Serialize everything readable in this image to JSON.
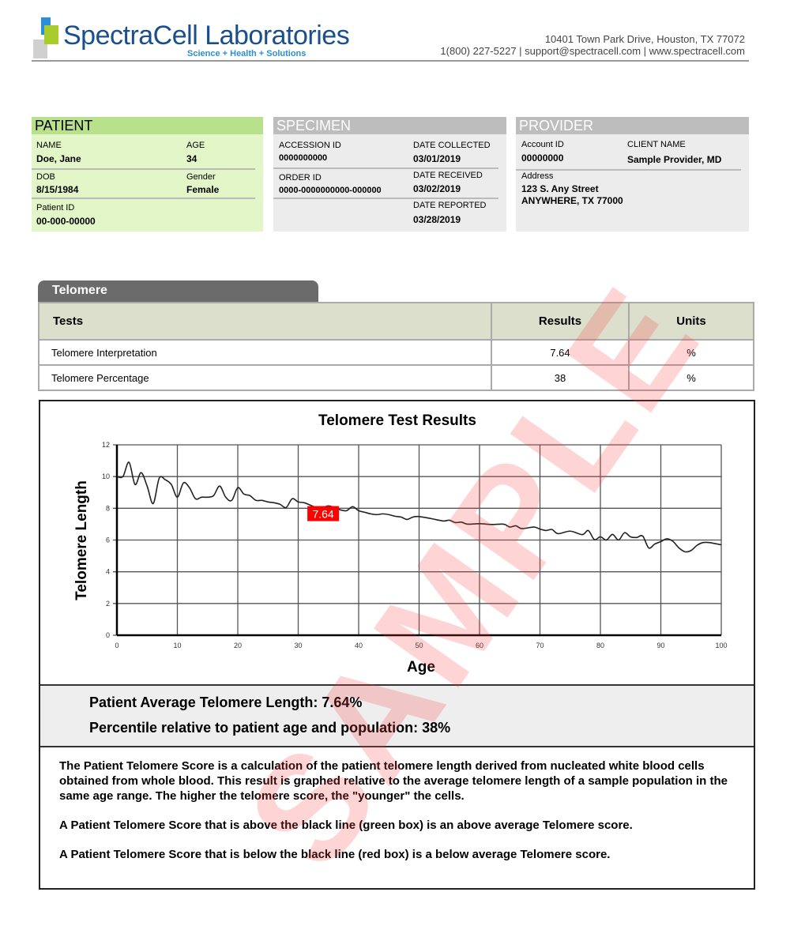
{
  "header": {
    "logo_text": "SpectraCell Laboratories",
    "tagline": "Science + Health + Solutions",
    "address_line1": "10401 Town Park Drive, Houston, TX 77072",
    "address_line2": "1(800) 227-5227 | support@spectracell.com | www.spectracell.com",
    "brand_color": "#1b4f8c"
  },
  "patient": {
    "title": "PATIENT",
    "name_label": "NAME",
    "name": "Doe, Jane",
    "age_label": "AGE",
    "age": "34",
    "dob_label": "DOB",
    "dob": "8/15/1984",
    "gender_label": "Gender",
    "gender": "Female",
    "pid_label": "Patient ID",
    "pid": "00-000-00000"
  },
  "specimen": {
    "title": "SPECIMEN",
    "accession_label": "ACCESSION ID",
    "accession": "0000000000",
    "collected_label": "DATE COLLECTED",
    "collected": "03/01/2019",
    "order_label": "ORDER ID",
    "order": "0000-0000000000-000000",
    "received_label": "DATE RECEIVED",
    "received": "03/02/2019",
    "reported_label": "DATE REPORTED",
    "reported": "03/28/2019"
  },
  "provider": {
    "title": "PROVIDER",
    "account_label": "Account ID",
    "account": "00000000",
    "client_label": "CLIENT NAME",
    "client": "Sample Provider, MD",
    "address_label": "Address",
    "address1": "123 S. Any Street",
    "address2": "ANYWHERE, TX 77000"
  },
  "section_tab": "Telomere",
  "table": {
    "headers": [
      "Tests",
      "Results",
      "Units"
    ],
    "rows": [
      [
        "Telomere Interpretation",
        "7.64",
        "%"
      ],
      [
        "Telomere Percentage",
        "38",
        "%"
      ]
    ]
  },
  "chart_data": {
    "type": "line",
    "title": "Telomere Test Results",
    "xlabel": "Age",
    "ylabel": "Telomere Length",
    "xlim": [
      0,
      100
    ],
    "ylim": [
      0,
      12
    ],
    "xticks": [
      0,
      10,
      20,
      30,
      40,
      50,
      60,
      70,
      80,
      90,
      100
    ],
    "yticks": [
      0,
      2,
      4,
      6,
      8,
      10,
      12
    ],
    "grid": true,
    "x": [
      0,
      1,
      2,
      3,
      4,
      5,
      6,
      7,
      8,
      9,
      10,
      11,
      12,
      13,
      14,
      15,
      16,
      17,
      18,
      19,
      20,
      21,
      22,
      23,
      24,
      25,
      26,
      27,
      28,
      29,
      30,
      31,
      32,
      33,
      34,
      35,
      36,
      37,
      38,
      39,
      40,
      41,
      42,
      43,
      44,
      45,
      46,
      47,
      48,
      49,
      50,
      52,
      54,
      55,
      56,
      57,
      58,
      60,
      62,
      64,
      65,
      66,
      67,
      69,
      70,
      71,
      72,
      73,
      75,
      77,
      78,
      79,
      80,
      81,
      82,
      83,
      84,
      85,
      86,
      87,
      88,
      89,
      90,
      91,
      92,
      93,
      94,
      95,
      96,
      97,
      98,
      100
    ],
    "y": [
      10,
      10,
      10.9,
      9.5,
      10.25,
      9.4,
      8.3,
      9.9,
      9.8,
      9.5,
      8.7,
      9.6,
      9.3,
      8.6,
      8.7,
      8.7,
      8.8,
      9.4,
      8.7,
      8.5,
      9.3,
      8.9,
      8.8,
      8.5,
      8.5,
      8.4,
      8.35,
      8.25,
      8.05,
      8.6,
      8.4,
      8.35,
      8.2,
      8.05,
      8.05,
      8.15,
      8.05,
      7.9,
      7.85,
      8.1,
      7.85,
      7.75,
      7.65,
      7.6,
      7.65,
      7.6,
      7.5,
      7.45,
      7.3,
      7.45,
      7.48,
      7.35,
      7.2,
      7.25,
      7.1,
      7.13,
      7.0,
      7.03,
      6.98,
      7.0,
      6.82,
      6.9,
      6.72,
      6.82,
      6.69,
      6.6,
      6.66,
      6.4,
      6.56,
      6.34,
      6.6,
      6.03,
      6.2,
      6.0,
      6.36,
      6.0,
      6.46,
      6.2,
      6.16,
      6.25,
      5.5,
      5.75,
      5.9,
      6.08,
      5.92,
      5.5,
      5.26,
      5.34,
      5.67,
      5.84,
      5.84,
      5.7
    ],
    "annotation": {
      "text": "7.64",
      "x": 34,
      "y": 7.64,
      "color": "#ff0000"
    },
    "line_color": "#222222"
  },
  "summary": {
    "avg": "Patient Average Telomere Length:  7.64%",
    "percentile": "Percentile relative to patient age and population:  38%"
  },
  "notes": [
    "The Patient Telomere Score is a calculation of the patient telomere length derived from nucleated white blood cells obtained from whole blood. This result is graphed relative to the average telomere length of a sample population in the same age range. The higher the telomere score, the \"younger\" the cells.",
    "A Patient Telomere Score that is above the black line (green box) is an above average Telomere score.",
    "A Patient Telomere Score that is below the black line (red box) is a below average Telomere score."
  ],
  "watermark": "SAMPLE"
}
